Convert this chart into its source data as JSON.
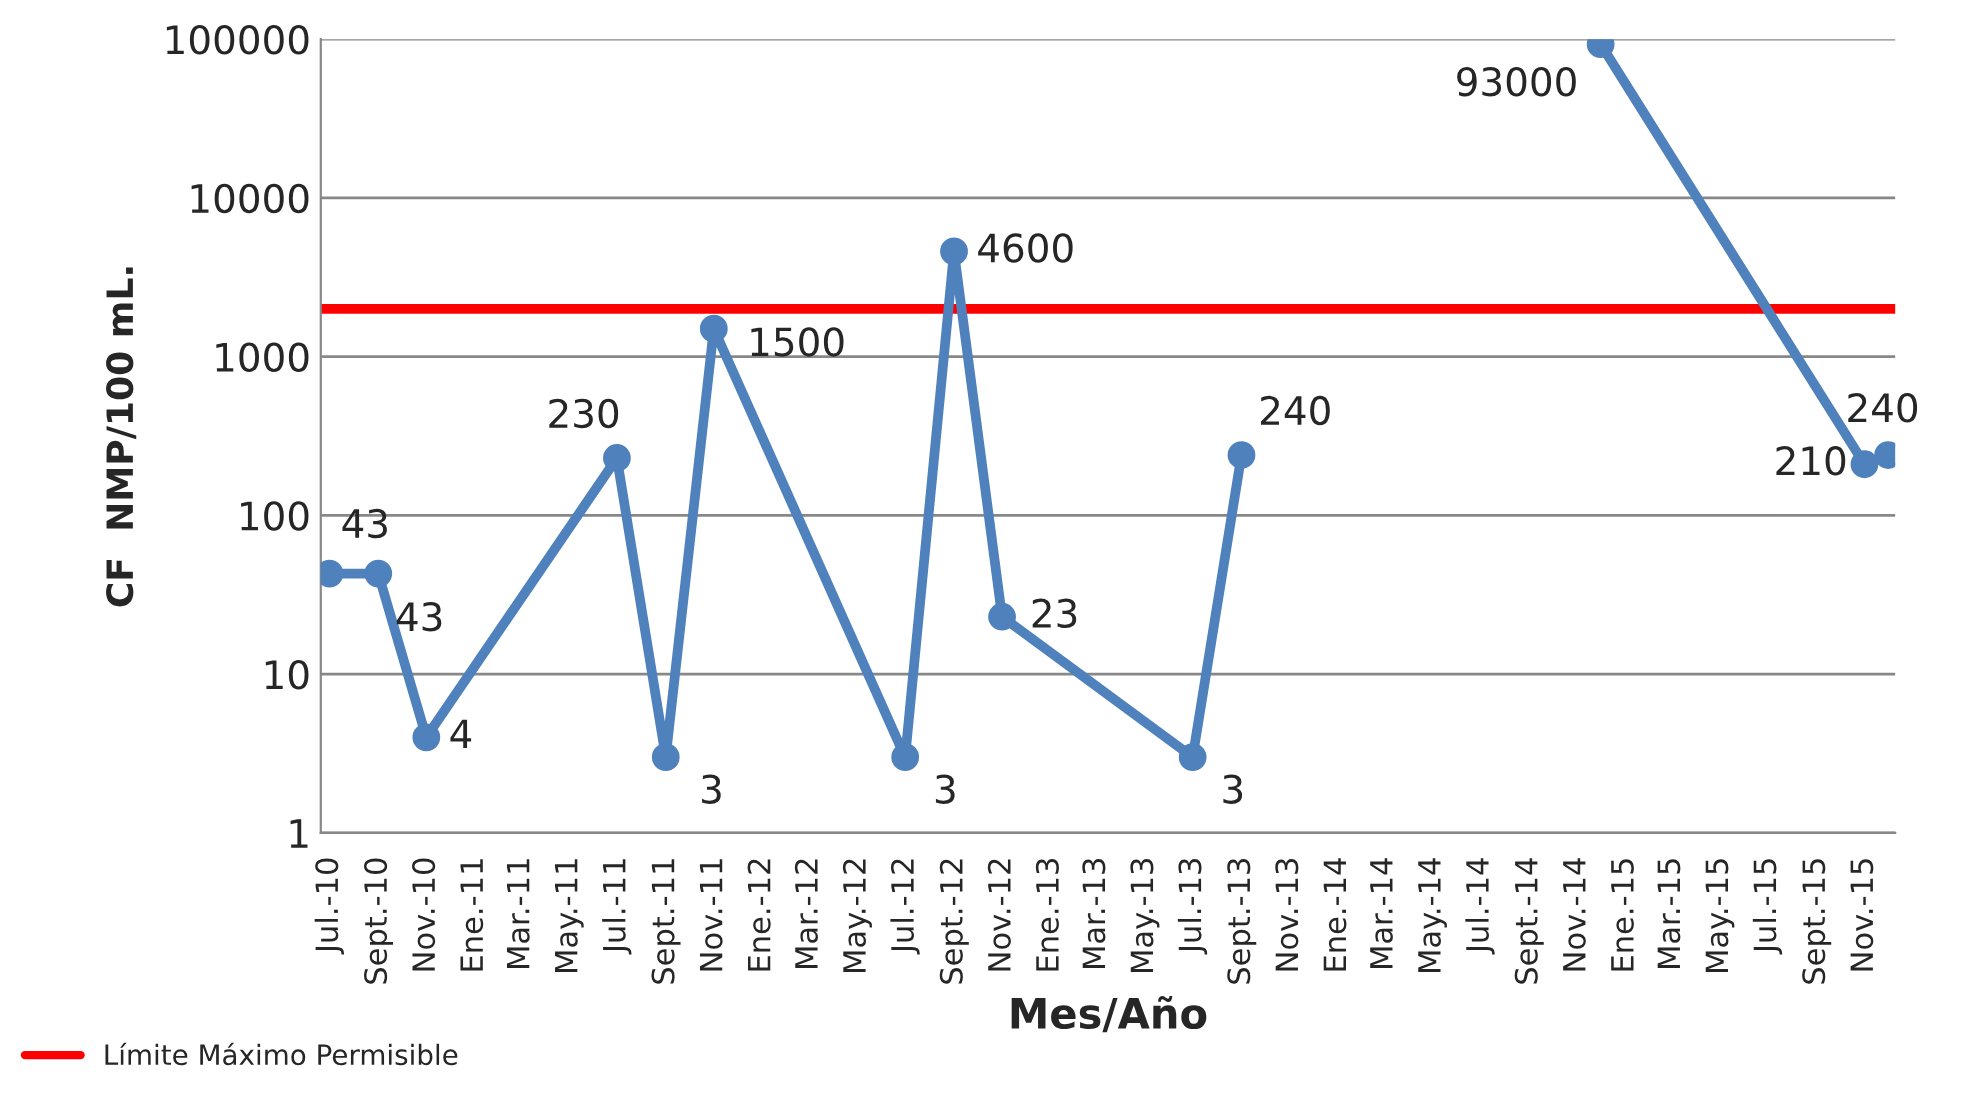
{
  "chart_data": {
    "type": "line",
    "xlabel": "Mes/Año",
    "ylabel": "CF  NMP/100 mL.",
    "series": [
      {
        "color": "#4f81bd",
        "x": [
          "2010-07",
          "2010-09",
          "2010-11",
          "2011-07",
          "2011-09",
          "2011-11",
          "2012-07",
          "2012-09",
          "2012-11",
          "2013-07",
          "2013-09"
        ],
        "values": [
          43,
          43,
          4,
          230,
          3,
          1500,
          3,
          4600,
          23,
          3,
          240
        ]
      },
      {
        "color": "#4f81bd",
        "x": [
          "2014-12",
          "2015-11",
          "2015-12"
        ],
        "values": [
          93000,
          210,
          240
        ]
      }
    ],
    "data_labels": true,
    "marker": "circle",
    "line_style": "solid",
    "log": "y",
    "grid": "y",
    "legend": "bottom left",
    "ref_lines": [
      {
        "axis": "y",
        "value": 2000,
        "label": "Límite Máximo Permisible",
        "color": "#ff0000"
      }
    ],
    "ylim": [
      1,
      100000
    ],
    "yticks": [
      1,
      10,
      100,
      1000,
      10000,
      100000
    ],
    "xlim": [
      "2010-06-20",
      "2015-12-10"
    ],
    "xticks": [
      {
        "value": "2010-07",
        "label": "Jul.-10"
      },
      {
        "value": "2010-09",
        "label": "Sept.-10"
      },
      {
        "value": "2010-11",
        "label": "Nov.-10"
      },
      {
        "value": "2011-01",
        "label": "Ene.-11"
      },
      {
        "value": "2011-03",
        "label": "Mar.-11"
      },
      {
        "value": "2011-05",
        "label": "May.-11"
      },
      {
        "value": "2011-07",
        "label": "Jul.-11"
      },
      {
        "value": "2011-09",
        "label": "Sept.-11"
      },
      {
        "value": "2011-11",
        "label": "Nov.-11"
      },
      {
        "value": "2012-01",
        "label": "Ene.-12"
      },
      {
        "value": "2012-03",
        "label": "Mar.-12"
      },
      {
        "value": "2012-05",
        "label": "May.-12"
      },
      {
        "value": "2012-07",
        "label": "Jul.-12"
      },
      {
        "value": "2012-09",
        "label": "Sept.-12"
      },
      {
        "value": "2012-11",
        "label": "Nov.-12"
      },
      {
        "value": "2013-01",
        "label": "Ene.-13"
      },
      {
        "value": "2013-03",
        "label": "Mar.-13"
      },
      {
        "value": "2013-05",
        "label": "May.-13"
      },
      {
        "value": "2013-07",
        "label": "Jul.-13"
      },
      {
        "value": "2013-09",
        "label": "Sept.-13"
      },
      {
        "value": "2013-11",
        "label": "Nov.-13"
      },
      {
        "value": "2014-01",
        "label": "Ene.-14"
      },
      {
        "value": "2014-03",
        "label": "Mar.-14"
      },
      {
        "value": "2014-05",
        "label": "May.-14"
      },
      {
        "value": "2014-07",
        "label": "Jul.-14"
      },
      {
        "value": "2014-09",
        "label": "Sept.-14"
      },
      {
        "value": "2014-11",
        "label": "Nov.-14"
      },
      {
        "value": "2015-01",
        "label": "Ene.-15"
      },
      {
        "value": "2015-03",
        "label": "Mar.-15"
      },
      {
        "value": "2015-05",
        "label": "May.-15"
      },
      {
        "value": "2015-07",
        "label": "Jul.-15"
      },
      {
        "value": "2015-09",
        "label": "Sept.-15"
      },
      {
        "value": "2015-11",
        "label": "Nov.-15"
      }
    ]
  }
}
